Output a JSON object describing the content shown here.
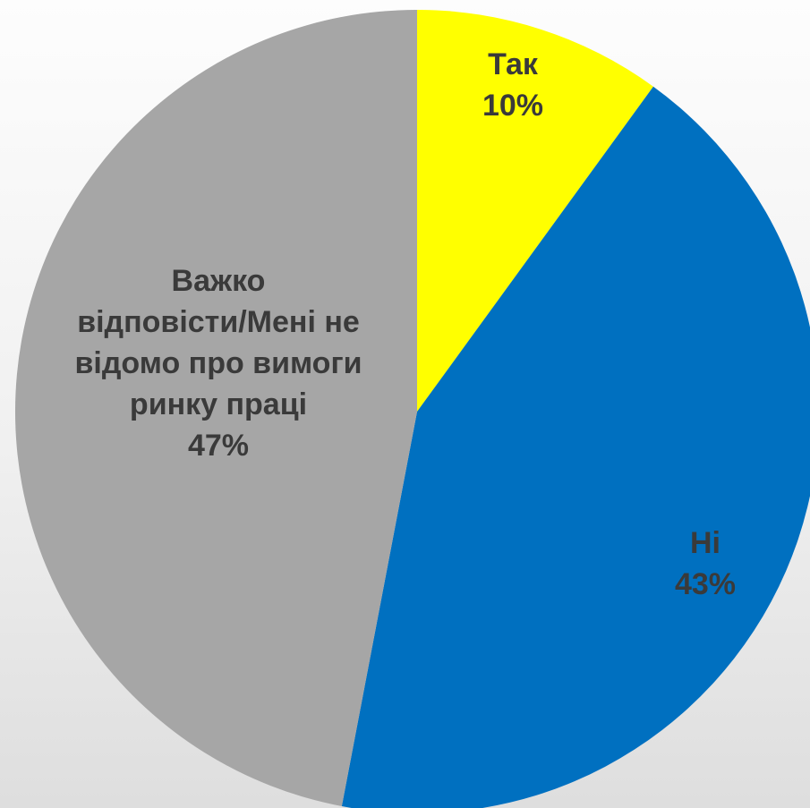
{
  "chart_data": {
    "type": "pie",
    "title": "",
    "start_angle_deg": 0,
    "direction": "clockwise",
    "slices": [
      {
        "label_lines": [
          "Так"
        ],
        "value": 10,
        "value_label": "10%",
        "color": "#FFFF00"
      },
      {
        "label_lines": [
          "Ні"
        ],
        "value": 43,
        "value_label": "43%",
        "color": "#0070C0"
      },
      {
        "label_lines": [
          "Важко",
          "відповісти/Мені не",
          "відомо про вимоги",
          "ринку праці"
        ],
        "value": 47,
        "value_label": "47%",
        "color": "#A6A6A6"
      }
    ],
    "legend": "none",
    "grid": false
  }
}
